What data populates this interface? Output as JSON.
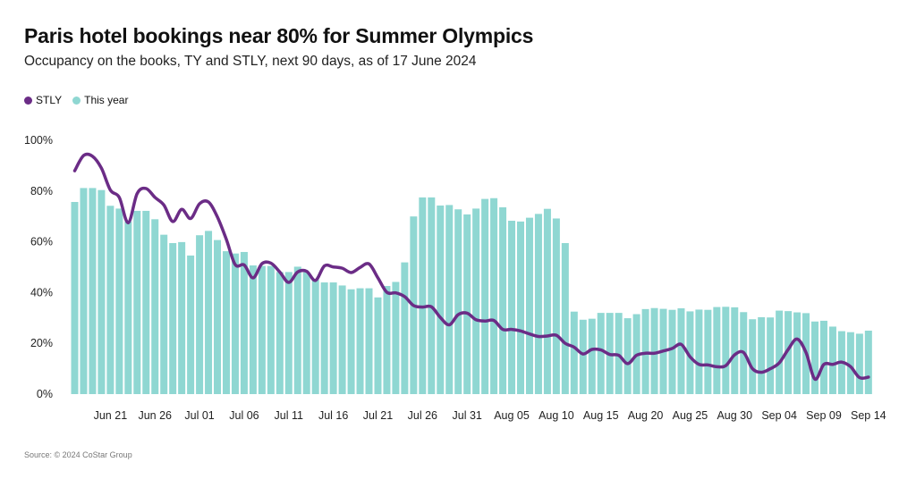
{
  "title": "Paris hotel bookings near 80% for Summer Olympics",
  "subtitle": "Occupancy on the books, TY and STLY, next 90 days, as of 17 June 2024",
  "source": "Source: © 2024 CoStar Group",
  "colors": {
    "this_year": "#8fd7d2",
    "stly": "#6b2c86"
  },
  "chart_data": {
    "type": "bar",
    "title": "Paris hotel bookings near 80% for Summer Olympics",
    "legend": {
      "placement": "top-left",
      "entries": [
        "STLY",
        "This year"
      ]
    },
    "x_start": "Jun 17",
    "x_end": "Sep 15",
    "x_tick_labels": [
      "Jun 21",
      "Jun 26",
      "Jul 01",
      "Jul 06",
      "Jul 11",
      "Jul 16",
      "Jul 21",
      "Jul 26",
      "Jul 31",
      "Aug 05",
      "Aug 10",
      "Aug 15",
      "Aug 20",
      "Aug 25",
      "Aug 30",
      "Sep 04",
      "Sep 09",
      "Sep 14"
    ],
    "y_tick_labels": [
      "0%",
      "20%",
      "40%",
      "60%",
      "80%",
      "100%"
    ],
    "ylim": [
      0,
      100
    ],
    "grid": false,
    "series": [
      {
        "name": "This year",
        "type": "bar",
        "values": [
          75.7,
          81.2,
          81.2,
          80.4,
          74.2,
          73.1,
          68,
          72.2,
          72.2,
          68.9,
          62.8,
          59.5,
          59.9,
          54.6,
          62.6,
          64.3,
          60.7,
          56.3,
          55.4,
          56,
          50.7,
          50.5,
          50.5,
          48.1,
          48.1,
          50.2,
          48,
          45.2,
          44,
          44,
          42.8,
          41.3,
          41.7,
          41.7,
          38.1,
          42.6,
          44.2,
          51.9,
          70,
          77.5,
          77.5,
          74.3,
          74.5,
          72.8,
          70.8,
          73.1,
          76.9,
          77.2,
          73.6,
          68.3,
          68,
          69.5,
          71,
          73,
          69.2,
          59.5,
          32.5,
          29.3,
          29.7,
          32,
          32,
          32,
          29.9,
          31.5,
          33.5,
          33.9,
          33.6,
          33.2,
          33.8,
          32.6,
          33.3,
          33.2,
          34.3,
          34.4,
          34.2,
          32.3,
          29.5,
          30.3,
          30.2,
          32.9,
          32.7,
          32.2,
          31.9,
          28.6,
          28.9,
          26.6,
          24.8,
          24.4,
          23.8,
          25
        ]
      },
      {
        "name": "STLY",
        "type": "line",
        "values": [
          88,
          94,
          93.7,
          89,
          80.4,
          77.5,
          67.5,
          79,
          81,
          77.5,
          74.5,
          68,
          72.8,
          69.2,
          75,
          75.7,
          69.8,
          61,
          51,
          50.9,
          45.8,
          51.4,
          51.6,
          48.1,
          44,
          48.1,
          48.4,
          44.8,
          50.5,
          50.1,
          49.6,
          47.9,
          49.9,
          51.3,
          45.8,
          40.1,
          39.9,
          38.4,
          34.9,
          34.3,
          34.4,
          30.2,
          27.3,
          31.3,
          31.9,
          29.3,
          28.8,
          29,
          25.5,
          25.5,
          24.9,
          23.7,
          22.7,
          22.9,
          23.2,
          20,
          18.5,
          15.8,
          17.6,
          17.4,
          15.6,
          15.3,
          12,
          15.3,
          16.1,
          16.1,
          17,
          18,
          19.6,
          14.7,
          11.7,
          11.5,
          10.8,
          11.2,
          15.5,
          16.4,
          10,
          8.6,
          10,
          12.3,
          17.6,
          21.7,
          16.4,
          5.9,
          11.7,
          11.7,
          12.6,
          10.8,
          6.5,
          6.7
        ]
      }
    ]
  }
}
